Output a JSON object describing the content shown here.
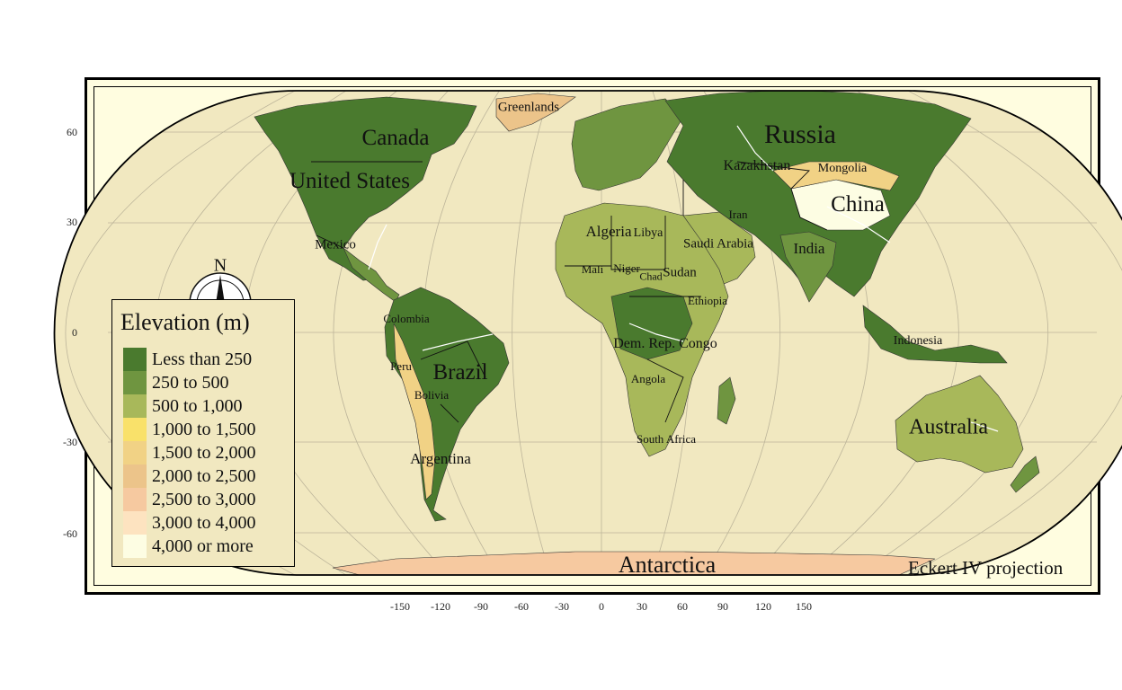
{
  "map": {
    "projection_label": "Eckert IV projection",
    "lat_ticks": [
      "60",
      "30",
      "0",
      "-30",
      "-60"
    ],
    "lon_ticks": [
      "-150",
      "-120",
      "-90",
      "-60",
      "-30",
      "0",
      "30",
      "60",
      "90",
      "120",
      "150"
    ],
    "colors": {
      "ocean": "#f1e8c0",
      "frame_bg": "#fffde0",
      "graticule": "#bdb59a",
      "borders": "#111111",
      "rivers": "#ffffff"
    },
    "places": [
      {
        "key": "greenlands",
        "name": "Greenlands"
      },
      {
        "key": "canada",
        "name": "Canada"
      },
      {
        "key": "united_states",
        "name": "United States"
      },
      {
        "key": "mexico",
        "name": "Mexico"
      },
      {
        "key": "russia",
        "name": "Russia"
      },
      {
        "key": "kazakhstan",
        "name": "Kazakhstan"
      },
      {
        "key": "mongolia",
        "name": "Mongolia"
      },
      {
        "key": "china",
        "name": "China"
      },
      {
        "key": "iran",
        "name": "Iran"
      },
      {
        "key": "algeria",
        "name": "Algeria"
      },
      {
        "key": "libya",
        "name": "Libya"
      },
      {
        "key": "saudi_arabia",
        "name": "Saudi Arabia"
      },
      {
        "key": "india",
        "name": "India"
      },
      {
        "key": "mali",
        "name": "Mali"
      },
      {
        "key": "niger",
        "name": "Niger"
      },
      {
        "key": "chad",
        "name": "Chad"
      },
      {
        "key": "sudan",
        "name": "Sudan"
      },
      {
        "key": "ethiopia",
        "name": "Ethiopia"
      },
      {
        "key": "colombia",
        "name": "Colombia"
      },
      {
        "key": "dem_rep_congo",
        "name": "Dem. Rep. Congo"
      },
      {
        "key": "indonesia",
        "name": "Indonesia"
      },
      {
        "key": "peru",
        "name": "Peru"
      },
      {
        "key": "brazil",
        "name": "Brazil"
      },
      {
        "key": "angola",
        "name": "Angola"
      },
      {
        "key": "bolivia",
        "name": "Bolivia"
      },
      {
        "key": "australia",
        "name": "Australia"
      },
      {
        "key": "south_africa",
        "name": "South Africa"
      },
      {
        "key": "argentina",
        "name": "Argentina"
      },
      {
        "key": "antarctica",
        "name": "Antarctica"
      }
    ],
    "compass_label": "N"
  },
  "legend": {
    "title": "Elevation (m)",
    "items": [
      {
        "label": "Less than 250",
        "color": "#4a7a2e"
      },
      {
        "label": "250 to 500",
        "color": "#6f9540"
      },
      {
        "label": "500 to 1,000",
        "color": "#a8b85a"
      },
      {
        "label": "1,000 to 1,500",
        "color": "#f9e16a"
      },
      {
        "label": "1,500 to 2,000",
        "color": "#f1d285"
      },
      {
        "label": "2,000 to 2,500",
        "color": "#ecc48a"
      },
      {
        "label": "2,500 to 3,000",
        "color": "#f6c9a0"
      },
      {
        "label": "3,000 to 4,000",
        "color": "#fde3c0"
      },
      {
        "label": "4,000 or more",
        "color": "#fdfde3"
      }
    ]
  }
}
